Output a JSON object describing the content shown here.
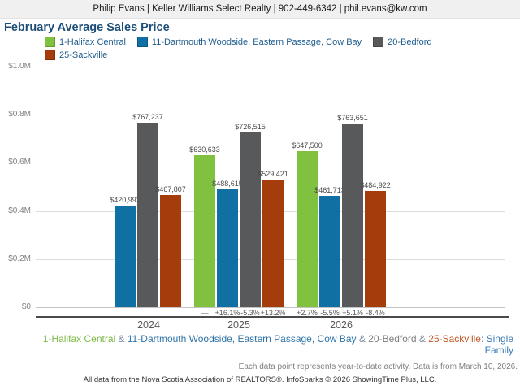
{
  "header": {
    "agent_info": "Philip Evans | Keller Williams Select Realty | 902-449-6342 | phil.evans@kw.com"
  },
  "chart_data": {
    "type": "bar",
    "title": "February Average Sales Price",
    "categories": [
      "2024",
      "2025",
      "2026"
    ],
    "series": [
      {
        "key": "halifax-central",
        "name": "1-Halifax Central",
        "color": "#80c13f",
        "values": [
          null,
          630633,
          647500
        ],
        "value_labels": [
          null,
          "$630,633",
          "$647,500"
        ],
        "yoy_changes": [
          null,
          "—",
          "+2.7%"
        ]
      },
      {
        "key": "dartmouth-woodside-eastern-passage-cow-bay",
        "name": "11-Dartmouth Woodside, Eastern Passage, Cow Bay",
        "color": "#1070a4",
        "values": [
          420992,
          488615,
          461713
        ],
        "value_labels": [
          "$420,992",
          "$488,615",
          "$461,713"
        ],
        "yoy_changes": [
          null,
          "+16.1%",
          "-5.5%"
        ]
      },
      {
        "key": "bedford",
        "name": "20-Bedford",
        "color": "#58595b",
        "values": [
          767237,
          726515,
          763651
        ],
        "value_labels": [
          "$767,237",
          "$726,515",
          "$763,651"
        ],
        "yoy_changes": [
          null,
          "-5.3%",
          "+5.1%"
        ]
      },
      {
        "key": "sackville",
        "name": "25-Sackville",
        "color": "#a43d0b",
        "values": [
          467807,
          529421,
          484922
        ],
        "value_labels": [
          "$467,807",
          "$529,421",
          "$484,922"
        ],
        "yoy_changes": [
          null,
          "+13.2%",
          "-8.4%"
        ]
      }
    ],
    "xlabel": "",
    "ylabel": "",
    "ylim": [
      0,
      1000000
    ],
    "y_ticks": [
      {
        "value": 1000000,
        "label": "$1.0M"
      },
      {
        "value": 800000,
        "label": "$0.8M"
      },
      {
        "value": 600000,
        "label": "$0.6M"
      },
      {
        "value": 400000,
        "label": "$0.4M"
      },
      {
        "value": 200000,
        "label": "$0.2M"
      },
      {
        "value": 0,
        "label": "$0"
      }
    ],
    "grid": "horizontal",
    "legend_position": "top"
  },
  "footer": {
    "region_caption_segments": [
      {
        "text": "1-Halifax Central",
        "color": "#7cb944"
      },
      {
        "text": " & ",
        "color": "#7f8da0"
      },
      {
        "text": "11-Dartmouth Woodside, Eastern Passage, Cow Bay",
        "color": "#2e74a8"
      },
      {
        "text": " & ",
        "color": "#7f8da0"
      },
      {
        "text": "20-Bedford",
        "color": "#808080"
      },
      {
        "text": " & ",
        "color": "#7f8da0"
      },
      {
        "text": "25-Sackville",
        "color": "#c05a28"
      },
      {
        "text": ": Single Family",
        "color": "#3a7cb8"
      }
    ],
    "data_note": "Each data point represents year-to-date activity. Data is from March 10, 2026.",
    "attribution": "All data from the Nova Scotia Association of REALTORS®. InfoSparks © 2026 ShowingTime Plus, LLC."
  }
}
